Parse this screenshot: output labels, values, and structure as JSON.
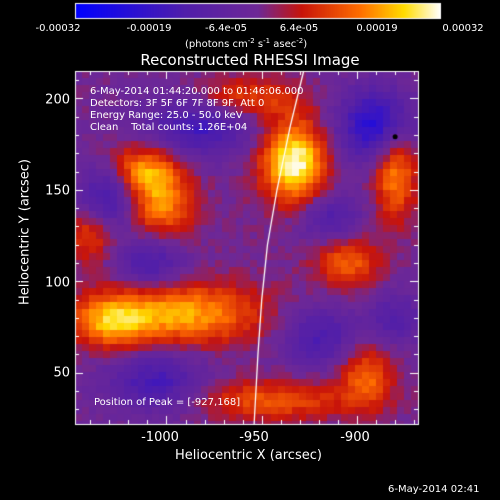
{
  "colorbar": {
    "ticks": [
      "-0.00032",
      "-0.00019",
      "-6.4e-05",
      "6.4e-05",
      "0.00019",
      "0.00032"
    ],
    "units_label": "(photons cm",
    "units_exp1": "-2",
    "units_mid1": " s",
    "units_exp2": "-1",
    "units_mid2": " asec",
    "units_exp3": "-2",
    "units_end": ")"
  },
  "annotations": {
    "time_range": "6-May-2014 01:44:20.000 to 01:46:06.000",
    "detectors": "Detectors: 3F 5F 6F 7F 8F 9F, Att 0",
    "energy": "Energy Range: 25.0 - 50.0 keV",
    "clean": "Clean    Total counts: 1.26E+04",
    "peak": "Position of Peak = [-927,168]"
  },
  "footer_timestamp": "6-May-2014 02:41",
  "chart_data": {
    "type": "heatmap",
    "title": "Reconstructed RHESSI Image",
    "xlabel": "Heliocentric X (arcsec)",
    "ylabel": "Heliocentric Y (arcsec)",
    "xlim": [
      -1048,
      -868
    ],
    "ylim": [
      22,
      215
    ],
    "xticks": [
      -1000,
      -950,
      -900
    ],
    "yticks": [
      50,
      100,
      150,
      200
    ],
    "colorscale": "rainbow-blue-to-white",
    "vmin": -0.00032,
    "vmax": 0.00032,
    "peak_position": [
      -927,
      168
    ],
    "limb": [
      [
        -928,
        215
      ],
      [
        -935,
        185
      ],
      [
        -942,
        150
      ],
      [
        -947,
        120
      ],
      [
        -950,
        90
      ],
      [
        -952,
        60
      ],
      [
        -954,
        22
      ]
    ],
    "sources": [
      {
        "x": -933,
        "y": 165,
        "sx": 12,
        "sy": 16,
        "amp": 1.0
      },
      {
        "x": -1012,
        "y": 160,
        "sx": 14,
        "sy": 10,
        "amp": 0.7
      },
      {
        "x": -1002,
        "y": 140,
        "sx": 12,
        "sy": 12,
        "amp": 0.55
      },
      {
        "x": -880,
        "y": 160,
        "sx": 8,
        "sy": 18,
        "amp": 0.65
      },
      {
        "x": -992,
        "y": 82,
        "sx": 30,
        "sy": 12,
        "amp": 0.7
      },
      {
        "x": -1030,
        "y": 78,
        "sx": 14,
        "sy": 10,
        "amp": 0.55
      },
      {
        "x": -905,
        "y": 110,
        "sx": 12,
        "sy": 10,
        "amp": 0.5
      },
      {
        "x": -960,
        "y": 200,
        "sx": 20,
        "sy": 8,
        "amp": 0.45
      },
      {
        "x": -895,
        "y": 48,
        "sx": 10,
        "sy": 12,
        "amp": 0.5
      },
      {
        "x": -945,
        "y": 35,
        "sx": 30,
        "sy": 8,
        "amp": 0.45
      },
      {
        "x": -1040,
        "y": 125,
        "sx": 8,
        "sy": 10,
        "amp": 0.4
      },
      {
        "x": -983,
        "y": 185,
        "sx": 20,
        "sy": 12,
        "amp": -0.55
      },
      {
        "x": -890,
        "y": 185,
        "sx": 14,
        "sy": 14,
        "amp": -0.75
      },
      {
        "x": -1030,
        "y": 148,
        "sx": 10,
        "sy": 12,
        "amp": -0.6
      },
      {
        "x": -1008,
        "y": 110,
        "sx": 12,
        "sy": 10,
        "amp": -0.45
      },
      {
        "x": -915,
        "y": 135,
        "sx": 12,
        "sy": 10,
        "amp": -0.4
      },
      {
        "x": -920,
        "y": 70,
        "sx": 14,
        "sy": 12,
        "amp": -0.45
      },
      {
        "x": -1005,
        "y": 45,
        "sx": 18,
        "sy": 12,
        "amp": -0.5
      },
      {
        "x": -880,
        "y": 80,
        "sx": 10,
        "sy": 10,
        "amp": -0.35
      }
    ]
  }
}
